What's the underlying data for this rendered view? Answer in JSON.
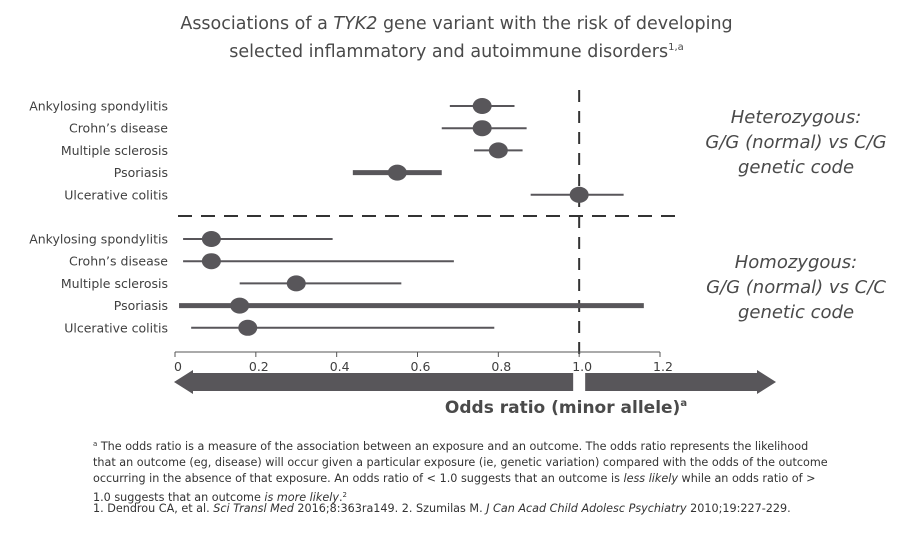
{
  "title": {
    "prefix": "Associations of a ",
    "gene": "TYK2",
    "rest": " gene variant with the risk of developing",
    "line2": "selected inflammatory and autoimmune disorders",
    "sup": "1,a"
  },
  "group_labels": {
    "heterozygous": [
      "Heterozygous:",
      "G/G (normal) vs C/G",
      "genetic code"
    ],
    "homozygous": [
      "Homozygous:",
      "G/G (normal) vs C/C",
      "genetic code"
    ]
  },
  "footnote": {
    "marker": "a",
    "text1": " The odds ratio is a measure of the association between an exposure and an outcome. The odds ratio represents the likelihood that an outcome (eg, disease) will occur given a particular exposure (ie, genetic variation) compared with the odds of the outcome occurring in the absence of that exposure. An odds ratio of < 1.0 suggests that an outcome is ",
    "em1": "less likely",
    "text2": " while an odds ratio of > 1.0 suggests that an outcome ",
    "em2": "is more likely",
    "text3": ".",
    "sup": "2"
  },
  "references": {
    "r1_pre": "1. Dendrou CA, et al. ",
    "r1_journal": "Sci Transl Med",
    "r1_post": " 2016;8:363ra149. 2. Szumilas M. ",
    "r2_journal": "J Can Acad Child Adolesc Psychiatry",
    "r2_post": " 2010;19:227-229."
  },
  "chart_data": {
    "type": "forest",
    "xlabel": "Odds ratio (minor allele)",
    "xlabel_sup": "a",
    "xlim": [
      0,
      1.2
    ],
    "ticks": [
      "0",
      "0.2",
      "0.4",
      "0.6",
      "0.8",
      "1.0",
      "1.2"
    ],
    "reference_line": 1.0,
    "colors": {
      "marker": "#58565a",
      "line": "#58565a",
      "arrow": "#58565a",
      "dash": "#333333"
    },
    "groups": [
      {
        "name": "Heterozygous: G/G (normal) vs C/G genetic code",
        "rows": [
          {
            "label": "Ankylosing spondylitis",
            "or": 0.76,
            "lo": 0.68,
            "hi": 0.84
          },
          {
            "label": "Crohn’s disease",
            "or": 0.76,
            "lo": 0.66,
            "hi": 0.87
          },
          {
            "label": "Multiple sclerosis",
            "or": 0.8,
            "lo": 0.74,
            "hi": 0.86
          },
          {
            "label": "Psoriasis",
            "or": 0.55,
            "lo": 0.44,
            "hi": 0.66
          },
          {
            "label": "Ulcerative colitis",
            "or": 1.0,
            "lo": 0.88,
            "hi": 1.11
          }
        ]
      },
      {
        "name": "Homozygous: G/G (normal) vs C/C genetic code",
        "rows": [
          {
            "label": "Ankylosing spondylitis",
            "or": 0.09,
            "lo": 0.02,
            "hi": 0.39
          },
          {
            "label": "Crohn’s disease",
            "or": 0.09,
            "lo": 0.02,
            "hi": 0.69
          },
          {
            "label": "Multiple sclerosis",
            "or": 0.3,
            "lo": 0.16,
            "hi": 0.56
          },
          {
            "label": "Psoriasis",
            "or": 0.16,
            "lo": 0.01,
            "hi": 1.16
          },
          {
            "label": "Ulcerative colitis",
            "or": 0.18,
            "lo": 0.04,
            "hi": 0.79
          }
        ]
      }
    ]
  }
}
